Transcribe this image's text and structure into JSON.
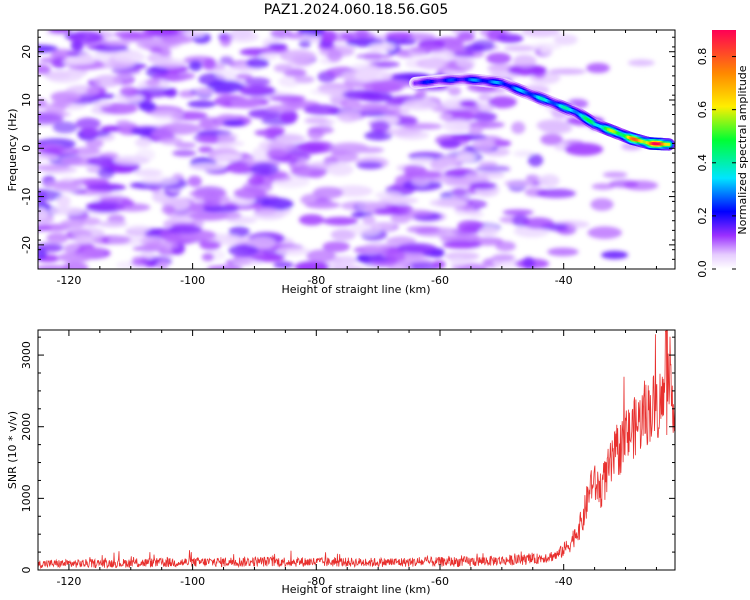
{
  "figure_title": "PAZ1.2024.060.18.56.G05",
  "chart_data": [
    {
      "type": "heatmap",
      "title": "PAZ1.2024.060.18.56.G05",
      "xlabel": "Height of straight line (km)",
      "ylabel": "Frequency (Hz)",
      "xlim": [
        -125,
        -22
      ],
      "ylim": [
        -25,
        24.5
      ],
      "x_ticks": [
        -120,
        -100,
        -80,
        -60,
        -40
      ],
      "y_ticks": [
        -20,
        -10,
        0,
        10,
        20
      ],
      "colorbar": {
        "label": "Normalized spectral amplitude",
        "range": [
          0,
          0.9
        ],
        "ticks": [
          "0.0",
          "0.2",
          "0.4",
          "0.6",
          "0.8"
        ],
        "colormap": [
          "#ffffff",
          "#d9b8ff",
          "#8a2be2",
          "#0000ff",
          "#00e5ff",
          "#00ff44",
          "#ffee00",
          "#ff8800",
          "#ff0066"
        ]
      },
      "signal_ridge": {
        "height_km": [
          -64,
          -60,
          -56,
          -53,
          -50,
          -47,
          -44,
          -41,
          -38,
          -35,
          -32,
          -29,
          -26,
          -23
        ],
        "frequency_hz": [
          13.5,
          14,
          14.3,
          14,
          13.5,
          12,
          10.5,
          9,
          7.5,
          5,
          3.5,
          2,
          1,
          0.8
        ],
        "amplitude": [
          0.2,
          0.22,
          0.25,
          0.3,
          0.28,
          0.3,
          0.35,
          0.35,
          0.4,
          0.45,
          0.55,
          0.7,
          0.85,
          0.85
        ]
      },
      "background_noise_amplitude": 0.08
    },
    {
      "type": "line",
      "xlabel": "Height of straight line (km)",
      "ylabel": "SNR (10 * v/v)",
      "xlim": [
        -125,
        -22
      ],
      "ylim": [
        0,
        3350
      ],
      "x_ticks": [
        -120,
        -100,
        -80,
        -60,
        -40
      ],
      "y_ticks": [
        0,
        1000,
        2000,
        3000
      ],
      "color": "#e8302e",
      "envelope": {
        "height_km": [
          -125,
          -110,
          -90,
          -70,
          -55,
          -45,
          -41,
          -39,
          -37,
          -35.5,
          -34,
          -32,
          -30,
          -28,
          -26,
          -24,
          -22
        ],
        "snr_base": [
          80,
          90,
          110,
          100,
          110,
          140,
          200,
          350,
          650,
          1200,
          1100,
          1500,
          1800,
          2000,
          2200,
          2300,
          2350
        ],
        "snr_noise": [
          70,
          80,
          90,
          80,
          90,
          90,
          100,
          150,
          250,
          350,
          350,
          450,
          500,
          550,
          600,
          650,
          600
        ],
        "peak_snr": 3330,
        "peak_height_km": -23.5
      }
    }
  ]
}
